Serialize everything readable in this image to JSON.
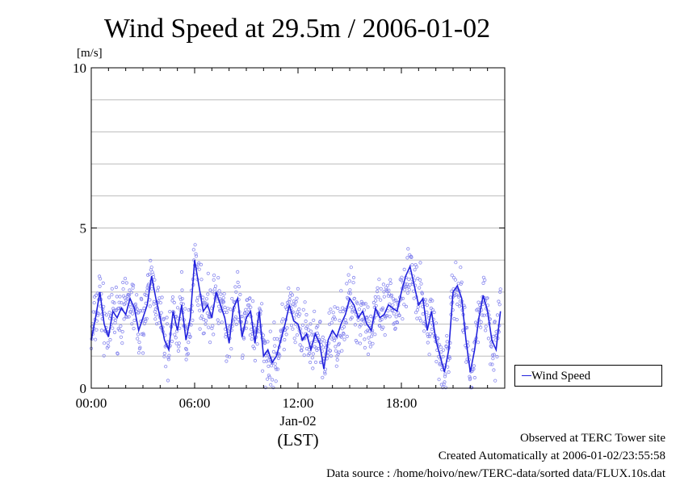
{
  "chart_data": {
    "type": "line",
    "title": "Wind Speed at 29.5m / 2006-01-02",
    "ylabel": "[m/s]",
    "ylim": [
      0,
      10
    ],
    "yticks": [
      {
        "value": 0,
        "label": "0"
      },
      {
        "value": 5,
        "label": "5"
      },
      {
        "value": 10,
        "label": "10"
      }
    ],
    "y_grid_step": 1,
    "xlim": [
      0,
      24
    ],
    "x_unit": "hours (LST)",
    "xticks": [
      {
        "value": 0,
        "label": "00:00"
      },
      {
        "value": 6,
        "label": "06:00"
      },
      {
        "value": 12,
        "label": "12:00"
      },
      {
        "value": 18,
        "label": "18:00"
      }
    ],
    "date_label": "Jan-02",
    "timezone_label": "(LST)",
    "grid": true,
    "legend_position": "right-bottom",
    "series": [
      {
        "name": "Wind Speed",
        "color": "#2222dd",
        "scatter_color": "#8888ee",
        "x": [
          0.0,
          0.25,
          0.5,
          0.75,
          1.0,
          1.25,
          1.5,
          1.75,
          2.0,
          2.25,
          2.5,
          2.75,
          3.0,
          3.25,
          3.5,
          3.75,
          4.0,
          4.25,
          4.5,
          4.75,
          5.0,
          5.25,
          5.5,
          5.75,
          6.0,
          6.25,
          6.5,
          6.75,
          7.0,
          7.25,
          7.5,
          7.75,
          8.0,
          8.25,
          8.5,
          8.75,
          9.0,
          9.25,
          9.5,
          9.75,
          10.0,
          10.25,
          10.5,
          10.75,
          11.0,
          11.25,
          11.5,
          11.75,
          12.0,
          12.25,
          12.5,
          12.75,
          13.0,
          13.25,
          13.5,
          13.75,
          14.0,
          14.25,
          14.5,
          14.75,
          15.0,
          15.25,
          15.5,
          15.75,
          16.0,
          16.25,
          16.5,
          16.75,
          17.0,
          17.25,
          17.5,
          17.75,
          18.0,
          18.25,
          18.5,
          18.75,
          19.0,
          19.25,
          19.5,
          19.75,
          20.0,
          20.25,
          20.5,
          20.75,
          21.0,
          21.25,
          21.5,
          21.75,
          22.0,
          22.25,
          22.5,
          22.75,
          23.0,
          23.25,
          23.5,
          23.75
        ],
        "values": [
          1.5,
          2.2,
          3.0,
          2.0,
          1.6,
          2.4,
          2.2,
          2.5,
          2.3,
          2.8,
          2.5,
          1.8,
          2.2,
          2.6,
          3.5,
          2.8,
          2.2,
          1.5,
          1.2,
          2.4,
          1.8,
          2.6,
          1.5,
          2.2,
          4.0,
          3.2,
          2.4,
          2.6,
          2.2,
          3.0,
          2.6,
          2.2,
          1.4,
          2.5,
          2.8,
          1.6,
          2.2,
          2.4,
          1.4,
          2.4,
          1.0,
          1.2,
          0.8,
          1.0,
          1.5,
          2.0,
          2.6,
          2.1,
          2.0,
          1.5,
          1.7,
          1.2,
          1.7,
          1.4,
          0.6,
          1.5,
          1.8,
          1.6,
          2.0,
          2.3,
          2.8,
          2.6,
          2.2,
          2.4,
          2.0,
          1.8,
          2.5,
          2.2,
          2.3,
          2.6,
          2.5,
          2.4,
          3.0,
          3.5,
          3.8,
          3.2,
          2.6,
          2.8,
          1.8,
          2.4,
          1.5,
          1.0,
          0.5,
          1.2,
          3.0,
          3.2,
          2.8,
          1.5,
          0.5,
          1.2,
          2.2,
          2.9,
          2.4,
          1.5,
          1.2,
          2.4
        ]
      }
    ]
  },
  "legend": {
    "label": "Wind Speed"
  },
  "footer": {
    "line1": "Observed at TERC Tower site",
    "line2": "Created Automatically at 2006-01-02/23:55:58",
    "line3": "Data source : /home/hoivo/new/TERC-data/sorted data/FLUX.10s.dat"
  }
}
